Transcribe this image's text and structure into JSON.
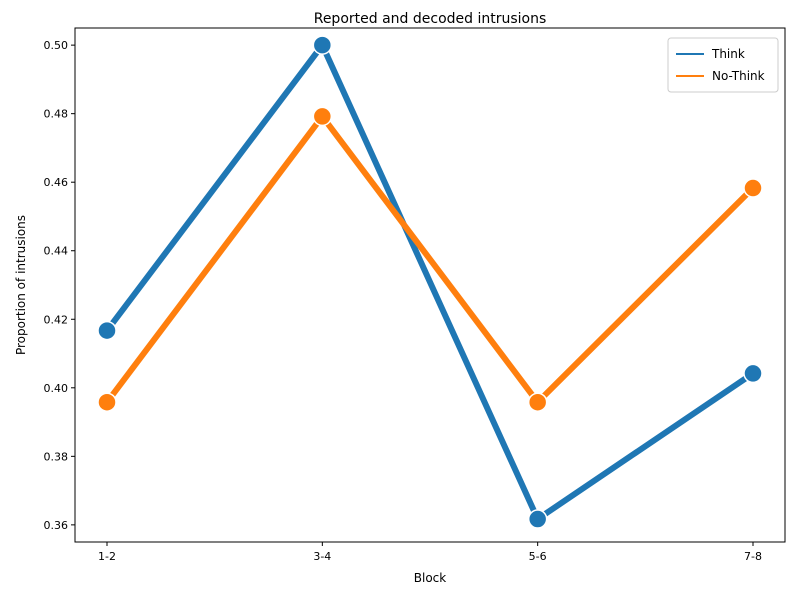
{
  "chart_data": {
    "type": "line",
    "title": "Reported and decoded intrusions",
    "xlabel": "Block",
    "ylabel": "Proportion of intrusions",
    "categories": [
      "1-2",
      "3-4",
      "5-6",
      "7-8"
    ],
    "ylim": [
      0.355,
      0.505
    ],
    "yticks": [
      0.36,
      0.38,
      0.4,
      0.42,
      0.44,
      0.46,
      0.48,
      0.5
    ],
    "ytick_labels": [
      "0.36",
      "0.38",
      "0.40",
      "0.42",
      "0.44",
      "0.46",
      "0.48",
      "0.50"
    ],
    "grid": false,
    "legend_position": "top-right",
    "series": [
      {
        "name": "Think",
        "color": "#1f77b4",
        "values": [
          0.4167,
          0.5,
          0.3617,
          0.4042
        ]
      },
      {
        "name": "No-Think",
        "color": "#ff7f0e",
        "values": [
          0.3958,
          0.4792,
          0.3958,
          0.4583
        ]
      }
    ]
  }
}
